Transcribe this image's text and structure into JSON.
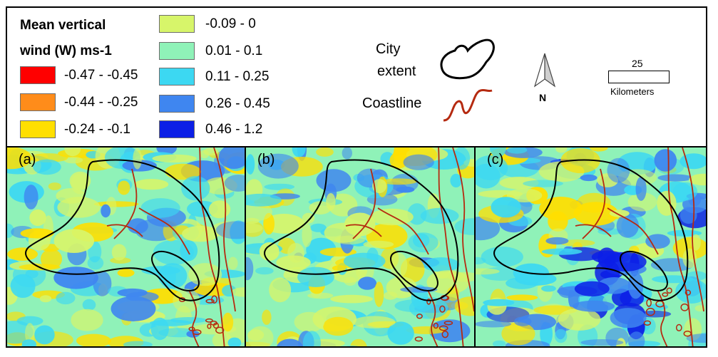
{
  "legend": {
    "title_line1": "Mean vertical",
    "title_line2": "wind (W) ms-1",
    "classes": [
      {
        "label": "-0.47 - -0.45",
        "color": "#ff0000"
      },
      {
        "label": "-0.44 - -0.25",
        "color": "#ff8c1a"
      },
      {
        "label": "-0.24 - -0.1",
        "color": "#ffdf00"
      },
      {
        "label": "-0.09 - 0",
        "color": "#d7f56a"
      },
      {
        "label": "0.01 - 0.1",
        "color": "#8ff2b8"
      },
      {
        "label": "0.11 - 0.25",
        "color": "#3cd8f2"
      },
      {
        "label": "0.26 - 0.45",
        "color": "#3f86f0"
      },
      {
        "label": "0.46 - 1.2",
        "color": "#0c1fe6"
      }
    ]
  },
  "key": {
    "city_line1": "City",
    "city_line2": "extent",
    "city_color": "#000000",
    "coastline_label": "Coastline",
    "coastline_color": "#b52a10"
  },
  "north": {
    "label": "N"
  },
  "scale": {
    "value": "25",
    "unit": "Kilometers"
  },
  "panels": [
    {
      "label": "(a)"
    },
    {
      "label": "(b)"
    },
    {
      "label": "(c)"
    }
  ]
}
